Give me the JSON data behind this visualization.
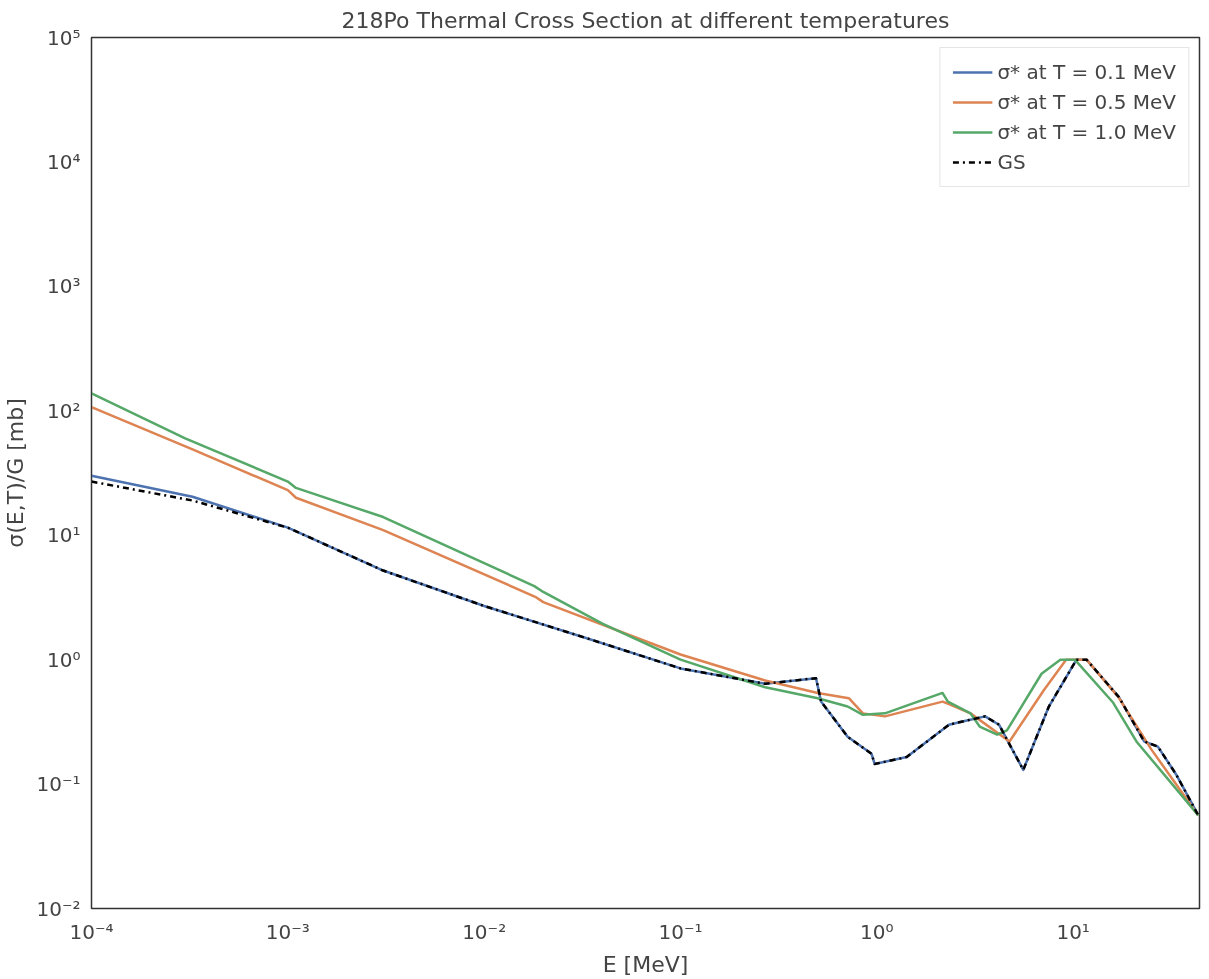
{
  "chart_data": {
    "type": "line",
    "title": "218Po Thermal Cross Section at different temperatures",
    "xlabel": "E [MeV]",
    "ylabel": "σ(E,T)/G [mb]",
    "log": "xy",
    "grid": false,
    "legend": "top right",
    "xlim": [
      0.0001,
      44
    ],
    "ylim": [
      0.01,
      100000
    ],
    "xticks": [
      {
        "value": 0.0001,
        "label": "10⁻⁴"
      },
      {
        "value": 0.001,
        "label": "10⁻³"
      },
      {
        "value": 0.01,
        "label": "10⁻²"
      },
      {
        "value": 0.1,
        "label": "10⁻¹"
      },
      {
        "value": 1,
        "label": "10⁰"
      },
      {
        "value": 10,
        "label": "10¹"
      }
    ],
    "yticks": [
      {
        "value": 0.01,
        "label": "10⁻²"
      },
      {
        "value": 0.1,
        "label": "10⁻¹"
      },
      {
        "value": 1,
        "label": "10⁰"
      },
      {
        "value": 10,
        "label": "10¹"
      },
      {
        "value": 100,
        "label": "10²"
      },
      {
        "value": 1000,
        "label": "10³"
      },
      {
        "value": 10000,
        "label": "10⁴"
      },
      {
        "value": 100000,
        "label": "10⁵"
      }
    ],
    "series": [
      {
        "name": "σ* at T = 0.1 MeV",
        "color": "#4c72b0",
        "line_style": "solid",
        "x": [
          0.0001,
          0.000327,
          0.001,
          0.00306,
          0.01,
          0.0327,
          0.1,
          0.27,
          0.49,
          0.52,
          0.71,
          0.94,
          0.975,
          1.42,
          2.33,
          2.77,
          3.56,
          4.19,
          5.57,
          7.52,
          10.4,
          11.7,
          17.1,
          23,
          27,
          33.4,
          43.4
        ],
        "values": [
          30,
          20.4,
          11.5,
          5.2,
          2.7,
          1.5,
          0.85,
          0.64,
          0.71,
          0.46,
          0.24,
          0.175,
          0.145,
          0.165,
          0.3,
          0.32,
          0.35,
          0.3,
          0.13,
          0.42,
          1.0,
          1.0,
          0.5,
          0.22,
          0.2,
          0.12,
          0.056
        ]
      },
      {
        "name": "σ* at T = 0.5 MeV",
        "color": "#dd8452",
        "line_style": "solid",
        "x": [
          0.0001,
          0.000327,
          0.001,
          0.0011,
          0.00306,
          0.0182,
          0.02,
          0.1,
          0.27,
          0.5,
          0.72,
          0.85,
          1.1,
          2.16,
          2.33,
          3.0,
          4.74,
          7.1,
          9.2,
          11.7,
          17,
          25,
          43.4
        ],
        "values": [
          107,
          49,
          23,
          20,
          11,
          3.2,
          2.9,
          1.1,
          0.68,
          0.54,
          0.49,
          0.37,
          0.35,
          0.46,
          0.44,
          0.37,
          0.22,
          0.57,
          1.0,
          1.0,
          0.5,
          0.19,
          0.056
        ]
      },
      {
        "name": "σ* at T = 1.0 MeV",
        "color": "#55a868",
        "line_style": "solid",
        "x": [
          0.0001,
          0.0003,
          0.001,
          0.0011,
          0.00306,
          0.018,
          0.02,
          0.04,
          0.1,
          0.27,
          0.5,
          0.71,
          0.85,
          1.1,
          2.16,
          2.3,
          3.0,
          3.34,
          4.1,
          4.6,
          6.9,
          8.6,
          10.2,
          16,
          21,
          43.4
        ],
        "values": [
          138,
          60,
          27,
          24,
          14,
          3.9,
          3.5,
          1.95,
          1.0,
          0.6,
          0.49,
          0.42,
          0.36,
          0.37,
          0.54,
          0.46,
          0.37,
          0.29,
          0.25,
          0.27,
          0.77,
          1.0,
          1.0,
          0.45,
          0.22,
          0.056
        ]
      },
      {
        "name": "GS",
        "color": "#000000",
        "line_style": "dashdot",
        "x": [
          0.0001,
          0.000327,
          0.001,
          0.00306,
          0.01,
          0.0327,
          0.1,
          0.27,
          0.49,
          0.52,
          0.71,
          0.94,
          0.975,
          1.42,
          2.33,
          2.77,
          3.56,
          4.19,
          5.57,
          7.52,
          10.4,
          11.7,
          17.1,
          23,
          27,
          33.4,
          43.4
        ],
        "values": [
          27,
          19,
          11.5,
          5.2,
          2.7,
          1.5,
          0.85,
          0.64,
          0.71,
          0.46,
          0.24,
          0.175,
          0.145,
          0.165,
          0.3,
          0.32,
          0.35,
          0.3,
          0.13,
          0.42,
          1.0,
          1.0,
          0.5,
          0.22,
          0.2,
          0.12,
          0.056
        ]
      }
    ]
  }
}
